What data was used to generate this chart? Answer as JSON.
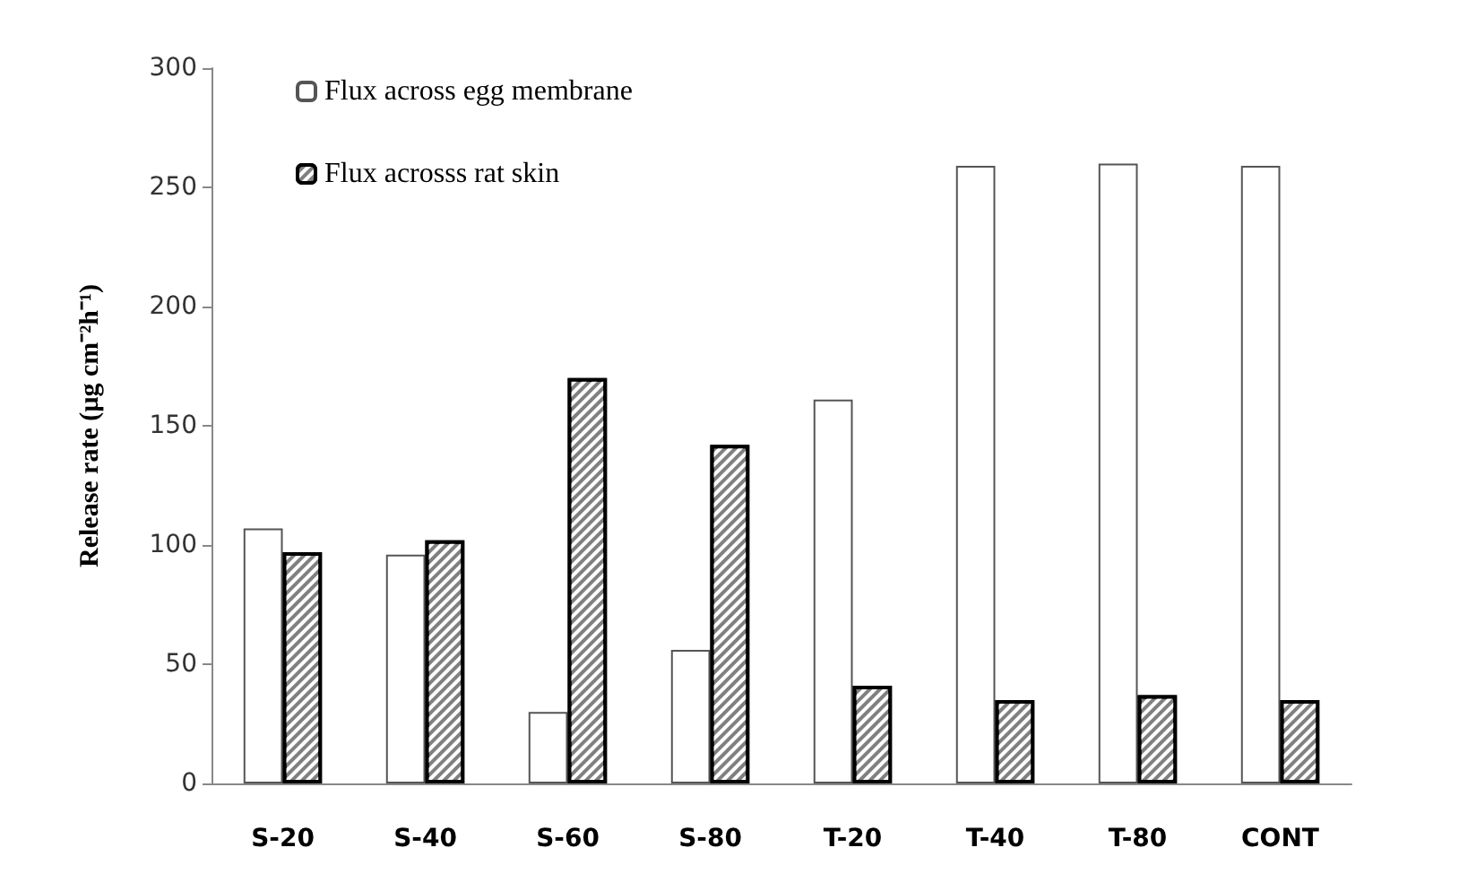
{
  "chart_data": {
    "type": "bar",
    "ylabel": "Release rate (µg cm⁻²h⁻¹)",
    "categories": [
      "S-20",
      "S-40",
      "S-60",
      "S-80",
      "T-20",
      "T-40",
      "T-80",
      "CONT"
    ],
    "series": [
      {
        "name": "Flux across egg membrane",
        "color": "#ffffff",
        "values": [
          107,
          96,
          30,
          56,
          161,
          259,
          260,
          259
        ]
      },
      {
        "name": "Flux acrosss rat skin",
        "color": "#808080",
        "values": [
          97,
          102,
          170,
          142,
          41,
          35,
          37,
          35
        ]
      }
    ],
    "ylim": [
      0,
      300
    ],
    "yticks": [
      0,
      50,
      100,
      150,
      200,
      250,
      300
    ],
    "grid": false,
    "legend": "top left"
  }
}
